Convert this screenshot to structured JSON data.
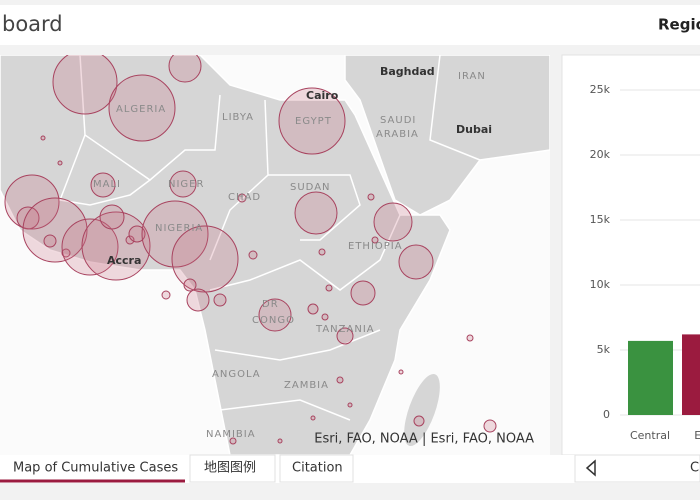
{
  "header": {
    "title": "board",
    "right_label": "Regio"
  },
  "map": {
    "labels": [
      "Baghdad",
      "IRAN",
      "Cairo",
      "EGYPT",
      "SAUDI",
      "ARABIA",
      "Dubai",
      "ALGERIA",
      "LIBYA",
      "MALI",
      "NIGER",
      "CHAD",
      "SUDAN",
      "NIGERIA",
      "ETHIOPIA",
      "Accra",
      "DR",
      "CONGO",
      "TANZANIA",
      "ANGOLA",
      "ZAMBIA",
      "NAMIBIA"
    ],
    "attribution": "Esri, FAO, NOAA | Esri, FAO, NOAA"
  },
  "tabs": [
    "Map of Cumulative Cases",
    "地图图例",
    "Citation"
  ],
  "bar_chart": {
    "type": "bar",
    "categories": [
      "Central",
      "Eas"
    ],
    "values": [
      5700,
      6200
    ],
    "colors": [
      "#3a9240",
      "#9b1b3f"
    ],
    "ylim": [
      0,
      25000
    ],
    "yticks": [
      0,
      {
        "value": 5000,
        "label": "5k"
      },
      {
        "value": 10000,
        "label": "10k"
      },
      {
        "value": 15000,
        "label": "15k"
      },
      {
        "value": 20000,
        "label": "20k"
      },
      {
        "value": 25000,
        "label": "25k"
      }
    ],
    "grid": true
  },
  "footer": {
    "nav_label": "C"
  }
}
